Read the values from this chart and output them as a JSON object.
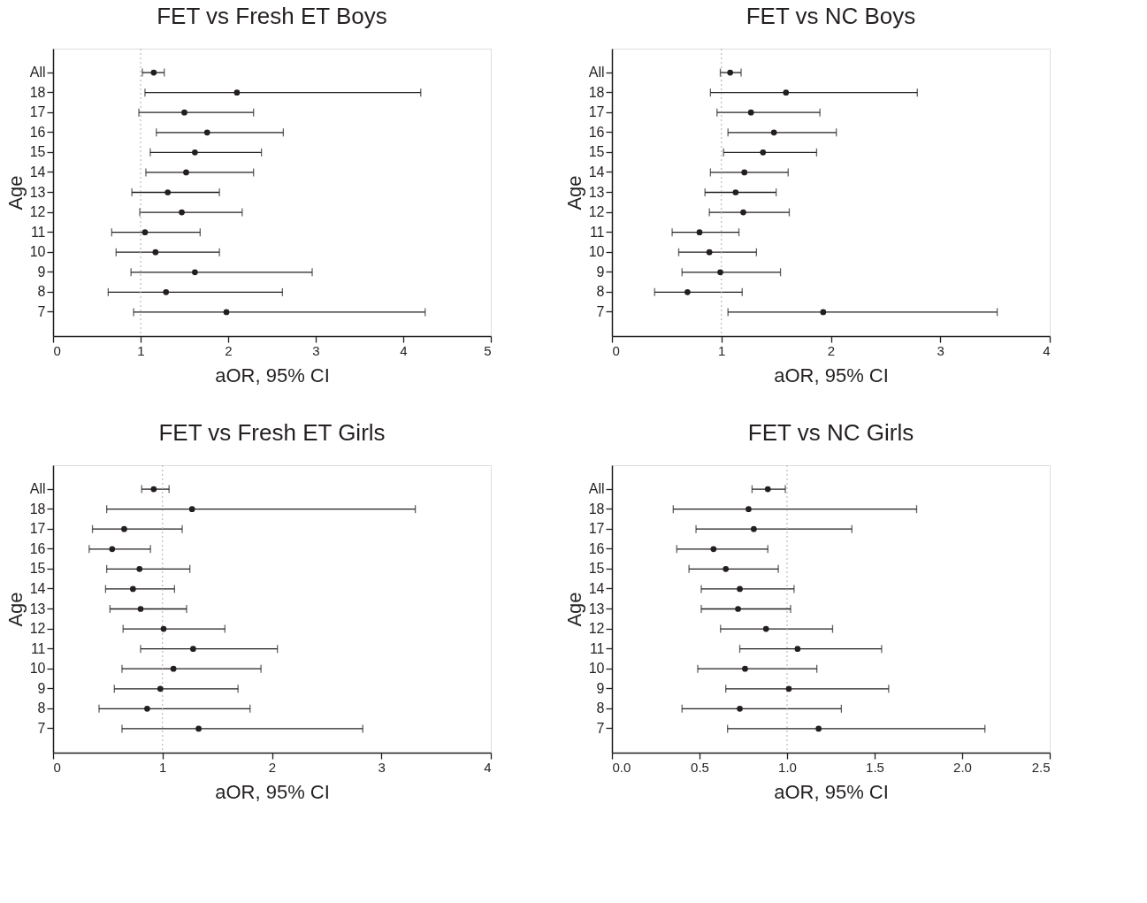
{
  "chart_data": [
    {
      "type": "scatter",
      "title": "FET vs Fresh ET Boys",
      "xlabel": "aOR, 95% CI",
      "ylabel": "Age",
      "orientation": "horizontal",
      "marker": "circle",
      "grid": false,
      "categories": [
        "All",
        "18",
        "17",
        "16",
        "15",
        "14",
        "13",
        "12",
        "11",
        "10",
        "9",
        "8",
        "7"
      ],
      "series": [
        {
          "color": "#231f20",
          "values": [
            1.15,
            2.1,
            1.5,
            1.76,
            1.62,
            1.52,
            1.31,
            1.47,
            1.05,
            1.17,
            1.62,
            1.29,
            1.98
          ],
          "errors": [
            [
              1.02,
              1.27
            ],
            [
              1.05,
              4.2
            ],
            [
              0.98,
              2.29
            ],
            [
              1.18,
              2.63
            ],
            [
              1.11,
              2.38
            ],
            [
              1.06,
              2.29
            ],
            [
              0.9,
              1.9
            ],
            [
              0.99,
              2.16
            ],
            [
              0.67,
              1.68
            ],
            [
              0.72,
              1.9
            ],
            [
              0.89,
              2.96
            ],
            [
              0.63,
              2.62
            ],
            [
              0.92,
              4.25
            ]
          ]
        }
      ],
      "xlim": [
        0,
        5
      ],
      "xticks": [
        0,
        1,
        2,
        3,
        4,
        5
      ],
      "ref_lines": [
        {
          "axis": "x",
          "value": 1,
          "color": "#bbbbbb",
          "line_style": "dotted"
        }
      ]
    },
    {
      "type": "scatter",
      "title": "FET vs NC Boys",
      "xlabel": "aOR, 95% CI",
      "ylabel": "Age",
      "orientation": "horizontal",
      "marker": "circle",
      "grid": false,
      "categories": [
        "All",
        "18",
        "17",
        "16",
        "15",
        "14",
        "13",
        "12",
        "11",
        "10",
        "9",
        "8",
        "7"
      ],
      "series": [
        {
          "color": "#231f20",
          "values": [
            1.08,
            1.59,
            1.27,
            1.48,
            1.38,
            1.21,
            1.13,
            1.2,
            0.8,
            0.89,
            0.99,
            0.69,
            1.93
          ],
          "errors": [
            [
              0.99,
              1.18
            ],
            [
              0.9,
              2.79
            ],
            [
              0.96,
              1.9
            ],
            [
              1.06,
              2.05
            ],
            [
              1.02,
              1.87
            ],
            [
              0.9,
              1.61
            ],
            [
              0.85,
              1.5
            ],
            [
              0.89,
              1.62
            ],
            [
              0.55,
              1.16
            ],
            [
              0.61,
              1.32
            ],
            [
              0.64,
              1.54
            ],
            [
              0.39,
              1.19
            ],
            [
              1.06,
              3.52
            ]
          ]
        }
      ],
      "xlim": [
        0,
        4
      ],
      "xticks": [
        0,
        1,
        2,
        3,
        4
      ],
      "ref_lines": [
        {
          "axis": "x",
          "value": 1,
          "color": "#bbbbbb",
          "line_style": "dotted"
        }
      ]
    },
    {
      "type": "scatter",
      "title": "FET vs Fresh ET Girls",
      "xlabel": "aOR, 95% CI",
      "ylabel": "Age",
      "orientation": "horizontal",
      "marker": "circle",
      "grid": false,
      "categories": [
        "All",
        "18",
        "17",
        "16",
        "15",
        "14",
        "13",
        "12",
        "11",
        "10",
        "9",
        "8",
        "7"
      ],
      "series": [
        {
          "color": "#231f20",
          "values": [
            0.92,
            1.27,
            0.65,
            0.54,
            0.79,
            0.73,
            0.8,
            1.01,
            1.28,
            1.1,
            0.98,
            0.86,
            1.33
          ],
          "errors": [
            [
              0.81,
              1.06
            ],
            [
              0.49,
              3.31
            ],
            [
              0.36,
              1.18
            ],
            [
              0.33,
              0.89
            ],
            [
              0.49,
              1.25
            ],
            [
              0.48,
              1.11
            ],
            [
              0.52,
              1.22
            ],
            [
              0.64,
              1.57
            ],
            [
              0.8,
              2.05
            ],
            [
              0.63,
              1.9
            ],
            [
              0.56,
              1.69
            ],
            [
              0.42,
              1.8
            ],
            [
              0.63,
              2.83
            ]
          ]
        }
      ],
      "xlim": [
        0,
        4
      ],
      "xticks": [
        0,
        1,
        2,
        3,
        4
      ],
      "ref_lines": [
        {
          "axis": "x",
          "value": 1,
          "color": "#bbbbbb",
          "line_style": "dotted"
        }
      ]
    },
    {
      "type": "scatter",
      "title": "FET vs NC Girls",
      "xlabel": "aOR, 95% CI",
      "ylabel": "Age",
      "orientation": "horizontal",
      "marker": "circle",
      "grid": false,
      "categories": [
        "All",
        "18",
        "17",
        "16",
        "15",
        "14",
        "13",
        "12",
        "11",
        "10",
        "9",
        "8",
        "7"
      ],
      "series": [
        {
          "color": "#231f20",
          "values": [
            0.89,
            0.78,
            0.81,
            0.58,
            0.65,
            0.73,
            0.72,
            0.88,
            1.06,
            0.76,
            1.01,
            0.73,
            1.18
          ],
          "errors": [
            [
              0.8,
              0.99
            ],
            [
              0.35,
              1.74
            ],
            [
              0.48,
              1.37
            ],
            [
              0.37,
              0.89
            ],
            [
              0.44,
              0.95
            ],
            [
              0.51,
              1.04
            ],
            [
              0.51,
              1.02
            ],
            [
              0.62,
              1.26
            ],
            [
              0.73,
              1.54
            ],
            [
              0.49,
              1.17
            ],
            [
              0.65,
              1.58
            ],
            [
              0.4,
              1.31
            ],
            [
              0.66,
              2.13
            ]
          ]
        }
      ],
      "xlim": [
        0,
        2.5
      ],
      "xticks": [
        {
          "value": 0,
          "label": "0.0"
        },
        {
          "value": 0.5,
          "label": "0.5"
        },
        {
          "value": 1,
          "label": "1.0"
        },
        {
          "value": 1.5,
          "label": "1.5"
        },
        {
          "value": 2,
          "label": "2.0"
        },
        {
          "value": 2.5,
          "label": "2.5"
        }
      ],
      "ref_lines": [
        {
          "axis": "x",
          "value": 1,
          "color": "#bbbbbb",
          "line_style": "dotted"
        }
      ]
    }
  ]
}
